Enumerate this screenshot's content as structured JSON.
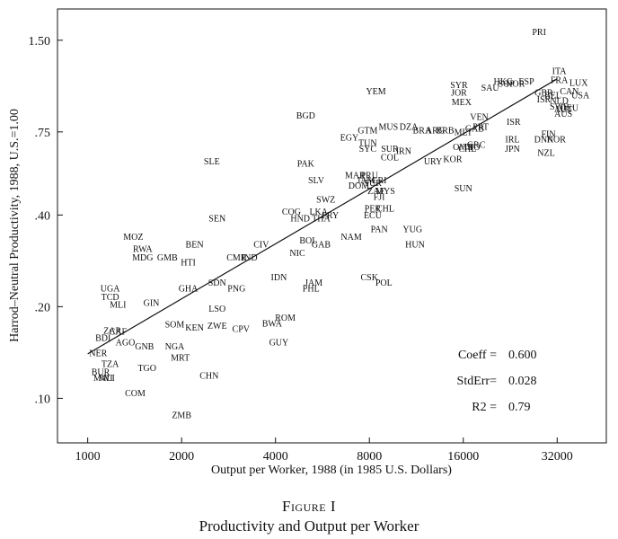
{
  "chart_data": {
    "type": "scatter",
    "xlabel": "Output per Worker, 1988 (in 1985 U.S. Dollars)",
    "ylabel": "Harrod–Neutral Productivity, 1988, U.S.=1.00",
    "x_scale": "log",
    "y_scale": "log",
    "xlim": [
      800,
      46000
    ],
    "ylim": [
      0.0714,
      1.9
    ],
    "x_ticks": [
      {
        "value": 1000,
        "label": "1000"
      },
      {
        "value": 2000,
        "label": "2000"
      },
      {
        "value": 4000,
        "label": "4000"
      },
      {
        "value": 8000,
        "label": "8000"
      },
      {
        "value": 16000,
        "label": "16000"
      },
      {
        "value": 32000,
        "label": "32000"
      }
    ],
    "y_ticks": [
      {
        "value": 0.1,
        "label": ".10"
      },
      {
        "value": 0.2,
        "label": ".20"
      },
      {
        "value": 0.4,
        "label": ".40"
      },
      {
        "value": 0.75,
        "label": ".75"
      },
      {
        "value": 1.5,
        "label": "1.50"
      }
    ],
    "grid": false,
    "legend": "none",
    "points": [
      {
        "label": "PRI",
        "x": 28000,
        "y": 1.6
      },
      {
        "label": "ITA",
        "x": 32500,
        "y": 1.19
      },
      {
        "label": "FRA",
        "x": 32500,
        "y": 1.11
      },
      {
        "label": "LUX",
        "x": 37500,
        "y": 1.09
      },
      {
        "label": "CAN",
        "x": 35000,
        "y": 1.02
      },
      {
        "label": "USA",
        "x": 38000,
        "y": 0.99
      },
      {
        "label": "ESP",
        "x": 25500,
        "y": 1.1
      },
      {
        "label": "NOR",
        "x": 23500,
        "y": 1.08
      },
      {
        "label": "HKG",
        "x": 21500,
        "y": 1.1
      },
      {
        "label": "SGP",
        "x": 22000,
        "y": 1.08
      },
      {
        "label": "SYR",
        "x": 15500,
        "y": 1.07
      },
      {
        "label": "SAU",
        "x": 19500,
        "y": 1.05
      },
      {
        "label": "JOR",
        "x": 15500,
        "y": 1.01
      },
      {
        "label": "GBR",
        "x": 29000,
        "y": 1.01
      },
      {
        "label": "BEL",
        "x": 31000,
        "y": 0.99
      },
      {
        "label": "ISR",
        "x": 29000,
        "y": 0.96
      },
      {
        "label": "NLD",
        "x": 32500,
        "y": 0.95
      },
      {
        "label": "SWE",
        "x": 32500,
        "y": 0.91
      },
      {
        "label": "AUT",
        "x": 33500,
        "y": 0.89
      },
      {
        "label": "DEU",
        "x": 35000,
        "y": 0.9
      },
      {
        "label": "AUS",
        "x": 33500,
        "y": 0.86
      },
      {
        "label": "YEM",
        "x": 8400,
        "y": 1.02
      },
      {
        "label": "MEX",
        "x": 15800,
        "y": 0.94
      },
      {
        "label": "VEN",
        "x": 18000,
        "y": 0.84
      },
      {
        "label": "ISR",
        "x": 23200,
        "y": 0.81
      },
      {
        "label": "BGD",
        "x": 5000,
        "y": 0.85
      },
      {
        "label": "MUS",
        "x": 9200,
        "y": 0.78
      },
      {
        "label": "DZA",
        "x": 10700,
        "y": 0.78
      },
      {
        "label": "BRA",
        "x": 11800,
        "y": 0.76
      },
      {
        "label": "ARG",
        "x": 13000,
        "y": 0.76
      },
      {
        "label": "BRB",
        "x": 14000,
        "y": 0.76
      },
      {
        "label": "MLT",
        "x": 16000,
        "y": 0.75
      },
      {
        "label": "GAB",
        "x": 17400,
        "y": 0.77
      },
      {
        "label": "PRT",
        "x": 18200,
        "y": 0.78
      },
      {
        "label": "GTM",
        "x": 7900,
        "y": 0.76
      },
      {
        "label": "EGY",
        "x": 6900,
        "y": 0.72
      },
      {
        "label": "TUN",
        "x": 7900,
        "y": 0.69
      },
      {
        "label": "SYC",
        "x": 7900,
        "y": 0.66
      },
      {
        "label": "SUR",
        "x": 9300,
        "y": 0.66
      },
      {
        "label": "IRN",
        "x": 10300,
        "y": 0.65
      },
      {
        "label": "COL",
        "x": 9300,
        "y": 0.62
      },
      {
        "label": "URY",
        "x": 12800,
        "y": 0.6
      },
      {
        "label": "KOR",
        "x": 14800,
        "y": 0.61
      },
      {
        "label": "OMN",
        "x": 16000,
        "y": 0.67
      },
      {
        "label": "TTO",
        "x": 17000,
        "y": 0.67
      },
      {
        "label": "GRC",
        "x": 17600,
        "y": 0.68
      },
      {
        "label": "CHL",
        "x": 16500,
        "y": 0.66
      },
      {
        "label": "IRL",
        "x": 23000,
        "y": 0.71
      },
      {
        "label": "JPN",
        "x": 23000,
        "y": 0.66
      },
      {
        "label": "FIN",
        "x": 30000,
        "y": 0.74
      },
      {
        "label": "DNK",
        "x": 29000,
        "y": 0.71
      },
      {
        "label": "NOR",
        "x": 31800,
        "y": 0.71
      },
      {
        "label": "NZL",
        "x": 29500,
        "y": 0.64
      },
      {
        "label": "SLE",
        "x": 2500,
        "y": 0.6
      },
      {
        "label": "PAK",
        "x": 5000,
        "y": 0.59
      },
      {
        "label": "MAR",
        "x": 7200,
        "y": 0.54
      },
      {
        "label": "PRU",
        "x": 8000,
        "y": 0.54
      },
      {
        "label": "SLV",
        "x": 5400,
        "y": 0.52
      },
      {
        "label": "JAM",
        "x": 7800,
        "y": 0.52
      },
      {
        "label": "CRI",
        "x": 8600,
        "y": 0.52
      },
      {
        "label": "DOM",
        "x": 7400,
        "y": 0.5
      },
      {
        "label": "TUR",
        "x": 8200,
        "y": 0.51
      },
      {
        "label": "ZAF",
        "x": 8400,
        "y": 0.48
      },
      {
        "label": "MYS",
        "x": 9000,
        "y": 0.48
      },
      {
        "label": "FJI",
        "x": 8600,
        "y": 0.46
      },
      {
        "label": "SUN",
        "x": 16000,
        "y": 0.49
      },
      {
        "label": "SWZ",
        "x": 5800,
        "y": 0.45
      },
      {
        "label": "COG",
        "x": 4500,
        "y": 0.41
      },
      {
        "label": "LKA",
        "x": 5500,
        "y": 0.41
      },
      {
        "label": "THA",
        "x": 5600,
        "y": 0.39
      },
      {
        "label": "PRY",
        "x": 6000,
        "y": 0.4
      },
      {
        "label": "HND",
        "x": 4800,
        "y": 0.39
      },
      {
        "label": "PER",
        "x": 8200,
        "y": 0.42
      },
      {
        "label": "CHL",
        "x": 9000,
        "y": 0.42
      },
      {
        "label": "ECU",
        "x": 8200,
        "y": 0.4
      },
      {
        "label": "SEN",
        "x": 2600,
        "y": 0.39
      },
      {
        "label": "PAN",
        "x": 8600,
        "y": 0.36
      },
      {
        "label": "YUG",
        "x": 11000,
        "y": 0.36
      },
      {
        "label": "NAM",
        "x": 7000,
        "y": 0.34
      },
      {
        "label": "HUN",
        "x": 11200,
        "y": 0.32
      },
      {
        "label": "MOZ",
        "x": 1400,
        "y": 0.34
      },
      {
        "label": "BEN",
        "x": 2200,
        "y": 0.32
      },
      {
        "label": "RWA",
        "x": 1500,
        "y": 0.31
      },
      {
        "label": "CIV",
        "x": 3600,
        "y": 0.32
      },
      {
        "label": "BOL",
        "x": 5100,
        "y": 0.33
      },
      {
        "label": "GAB",
        "x": 5600,
        "y": 0.32
      },
      {
        "label": "NIC",
        "x": 4700,
        "y": 0.3
      },
      {
        "label": "MDG",
        "x": 1500,
        "y": 0.29
      },
      {
        "label": "GMB",
        "x": 1800,
        "y": 0.29
      },
      {
        "label": "HTI",
        "x": 2100,
        "y": 0.28
      },
      {
        "label": "CMR",
        "x": 3000,
        "y": 0.29
      },
      {
        "label": "IND",
        "x": 3300,
        "y": 0.29
      },
      {
        "label": "CSK",
        "x": 8000,
        "y": 0.25
      },
      {
        "label": "POL",
        "x": 8900,
        "y": 0.24
      },
      {
        "label": "IDN",
        "x": 4100,
        "y": 0.25
      },
      {
        "label": "JAM",
        "x": 5300,
        "y": 0.24
      },
      {
        "label": "PHL",
        "x": 5200,
        "y": 0.23
      },
      {
        "label": "SDN",
        "x": 2600,
        "y": 0.24
      },
      {
        "label": "PNG",
        "x": 3000,
        "y": 0.23
      },
      {
        "label": "UGA",
        "x": 1180,
        "y": 0.23
      },
      {
        "label": "TCD",
        "x": 1180,
        "y": 0.215
      },
      {
        "label": "GHA",
        "x": 2100,
        "y": 0.23
      },
      {
        "label": "MLI",
        "x": 1250,
        "y": 0.203
      },
      {
        "label": "GIN",
        "x": 1600,
        "y": 0.206
      },
      {
        "label": "LSO",
        "x": 2600,
        "y": 0.197
      },
      {
        "label": "ROM",
        "x": 4300,
        "y": 0.184
      },
      {
        "label": "SOM",
        "x": 1900,
        "y": 0.175
      },
      {
        "label": "KEN",
        "x": 2200,
        "y": 0.171
      },
      {
        "label": "ZWE",
        "x": 2600,
        "y": 0.173
      },
      {
        "label": "BWA",
        "x": 3900,
        "y": 0.176
      },
      {
        "label": "CPV",
        "x": 3100,
        "y": 0.169
      },
      {
        "label": "ZAR",
        "x": 1200,
        "y": 0.167
      },
      {
        "label": "CAF",
        "x": 1250,
        "y": 0.166
      },
      {
        "label": "BDI",
        "x": 1120,
        "y": 0.158
      },
      {
        "label": "AGO",
        "x": 1320,
        "y": 0.153
      },
      {
        "label": "GNB",
        "x": 1520,
        "y": 0.148
      },
      {
        "label": "NGA",
        "x": 1900,
        "y": 0.148
      },
      {
        "label": "GUY",
        "x": 4100,
        "y": 0.153
      },
      {
        "label": "NER",
        "x": 1080,
        "y": 0.141
      },
      {
        "label": "MRT",
        "x": 1980,
        "y": 0.136
      },
      {
        "label": "TZA",
        "x": 1180,
        "y": 0.13
      },
      {
        "label": "TGO",
        "x": 1550,
        "y": 0.126
      },
      {
        "label": "BUR",
        "x": 1100,
        "y": 0.122
      },
      {
        "label": "MWI",
        "x": 1120,
        "y": 0.117
      },
      {
        "label": "MLI",
        "x": 1150,
        "y": 0.117
      },
      {
        "label": "CHN",
        "x": 2450,
        "y": 0.119
      },
      {
        "label": "COM",
        "x": 1420,
        "y": 0.104
      },
      {
        "label": "ZMB",
        "x": 2000,
        "y": 0.088
      }
    ],
    "fit_line": {
      "x": [
        1000,
        32000
      ],
      "y": [
        0.14,
        1.12
      ]
    },
    "annotations": [
      {
        "label": "Coeff =",
        "value": "0.600"
      },
      {
        "label": "StdErr=",
        "value": "0.028"
      },
      {
        "label": "R2 =",
        "value": "0.79"
      }
    ]
  },
  "caption": {
    "figure_label": "Figure I",
    "title": "Productivity and Output per Worker"
  }
}
